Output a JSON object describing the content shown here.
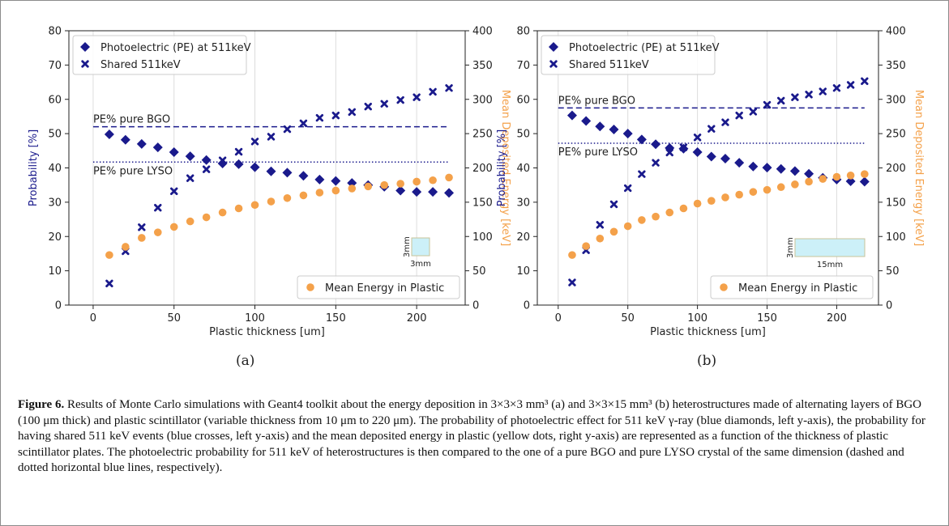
{
  "chart_data": [
    {
      "type": "scatter",
      "panel_label": "(a)",
      "xlabel": "Plastic thickness [um]",
      "ylabel": "Probability [%]",
      "y2label": "Mean Deposited Energy [keV]",
      "xlim": [
        -15,
        230
      ],
      "ylim": [
        0,
        80
      ],
      "y2lim": [
        0,
        400
      ],
      "xticks": [
        0,
        50,
        100,
        150,
        200
      ],
      "yticks": [
        0,
        10,
        20,
        30,
        40,
        50,
        60,
        70,
        80
      ],
      "y2ticks": [
        0,
        50,
        100,
        150,
        200,
        250,
        300,
        350,
        400
      ],
      "grid": "vertical",
      "x": [
        10,
        20,
        30,
        40,
        50,
        60,
        70,
        80,
        90,
        100,
        110,
        120,
        130,
        140,
        150,
        160,
        170,
        180,
        190,
        200,
        210,
        220
      ],
      "series": [
        {
          "name": "Photoelectric (PE) at 511keV",
          "axis": "left",
          "marker": "diamond",
          "color": "#1a1a8c",
          "values": [
            49.8,
            48.2,
            47.0,
            46.0,
            44.6,
            43.4,
            42.3,
            41.3,
            41.1,
            40.2,
            39.0,
            38.6,
            37.7,
            36.6,
            36.2,
            35.6,
            35.0,
            34.5,
            33.4,
            33.0,
            33.0,
            32.7
          ]
        },
        {
          "name": "Shared 511keV",
          "axis": "left",
          "marker": "cross",
          "color": "#1a1a8c",
          "values": [
            6.3,
            15.7,
            22.7,
            28.4,
            33.2,
            37.0,
            39.6,
            42.2,
            44.7,
            47.7,
            49.1,
            51.3,
            53.0,
            54.6,
            55.3,
            56.3,
            57.9,
            58.7,
            59.8,
            60.6,
            62.2,
            63.3
          ]
        },
        {
          "name": "Mean Energy in Plastic",
          "axis": "right",
          "marker": "circle",
          "color": "#f4a14a",
          "values": [
            73,
            85,
            98,
            106,
            114,
            122,
            128,
            135,
            141,
            146,
            151,
            156,
            160,
            164,
            167,
            170,
            173,
            175,
            177,
            180,
            182,
            186
          ]
        }
      ],
      "reference_lines": [
        {
          "label": "PE% pure BGO",
          "y": 52,
          "style": "dashed",
          "color": "#1a1a8c"
        },
        {
          "label": "PE% pure LYSO",
          "y": 41.7,
          "style": "dotted",
          "color": "#1a1a8c"
        }
      ],
      "legend_top": "top-left",
      "legend_bottom": "bottom-right",
      "inset": {
        "labels": [
          "3mm",
          "3mm"
        ],
        "color": "#ccf0f8",
        "edge": "#c9c39a"
      }
    },
    {
      "type": "scatter",
      "panel_label": "(b)",
      "xlabel": "Plastic thickness [um]",
      "ylabel": "Probability [%]",
      "y2label": "Mean Deposited Energy [keV]",
      "xlim": [
        -15,
        230
      ],
      "ylim": [
        0,
        80
      ],
      "y2lim": [
        0,
        400
      ],
      "xticks": [
        0,
        50,
        100,
        150,
        200
      ],
      "yticks": [
        0,
        10,
        20,
        30,
        40,
        50,
        60,
        70,
        80
      ],
      "y2ticks": [
        0,
        50,
        100,
        150,
        200,
        250,
        300,
        350,
        400
      ],
      "grid": "vertical",
      "x": [
        10,
        20,
        30,
        40,
        50,
        60,
        70,
        80,
        90,
        100,
        110,
        120,
        130,
        140,
        150,
        160,
        170,
        180,
        190,
        200,
        210,
        220
      ],
      "series": [
        {
          "name": "Photoelectric (PE) at 511keV",
          "axis": "left",
          "marker": "diamond",
          "color": "#1a1a8c",
          "values": [
            55.3,
            53.7,
            52.1,
            51.2,
            50.0,
            48.3,
            46.9,
            45.8,
            45.6,
            44.6,
            43.3,
            42.7,
            41.5,
            40.4,
            40.1,
            39.7,
            39.1,
            38.3,
            37.1,
            36.6,
            36.1,
            36.0
          ]
        },
        {
          "name": "Shared 511keV",
          "axis": "left",
          "marker": "cross",
          "color": "#1a1a8c",
          "values": [
            6.6,
            16.0,
            23.4,
            29.4,
            34.1,
            38.2,
            41.5,
            44.5,
            46.0,
            48.9,
            51.4,
            53.3,
            55.3,
            56.4,
            58.4,
            59.6,
            60.6,
            61.4,
            62.3,
            63.3,
            64.2,
            65.3
          ]
        },
        {
          "name": "Mean Energy in Plastic",
          "axis": "right",
          "marker": "circle",
          "color": "#f4a14a",
          "values": [
            73,
            86,
            97,
            107,
            115,
            124,
            129,
            135,
            141,
            148,
            152,
            157,
            161,
            165,
            168,
            172,
            176,
            180,
            184,
            187,
            189,
            191
          ]
        }
      ],
      "reference_lines": [
        {
          "label": "PE% pure BGO",
          "y": 57.5,
          "style": "dashed",
          "color": "#1a1a8c"
        },
        {
          "label": "PE% pure LYSO",
          "y": 47.2,
          "style": "dotted",
          "color": "#1a1a8c"
        }
      ],
      "legend_top": "top-left",
      "legend_bottom": "bottom-right",
      "inset": {
        "labels": [
          "3mm",
          "15mm"
        ],
        "color": "#ccf0f8",
        "edge": "#c9c39a"
      }
    }
  ],
  "caption": {
    "label": "Figure 6.",
    "text": " Results of Monte Carlo simulations with Geant4 toolkit about the energy deposition in 3×3×3 mm³ (a) and  3×3×15 mm³ (b) heterostructures made of alternating layers of BGO (100 μm thick) and plastic scintillator (variable thickness from 10 μm to 220 μm). The probability of photoelectric effect for 511 keV γ-ray (blue diamonds, left y-axis), the probability for having shared 511 keV events (blue crosses, left y-axis) and the mean deposited energy in plastic (yellow dots, right y-axis) are represented as a function of the thickness of plastic scintillator plates. The photoelectric probability for 511 keV of heterostructures is then compared to the one of a pure BGO and pure LYSO crystal of the same dimension (dashed and dotted horizontal blue lines, respectively)."
  }
}
